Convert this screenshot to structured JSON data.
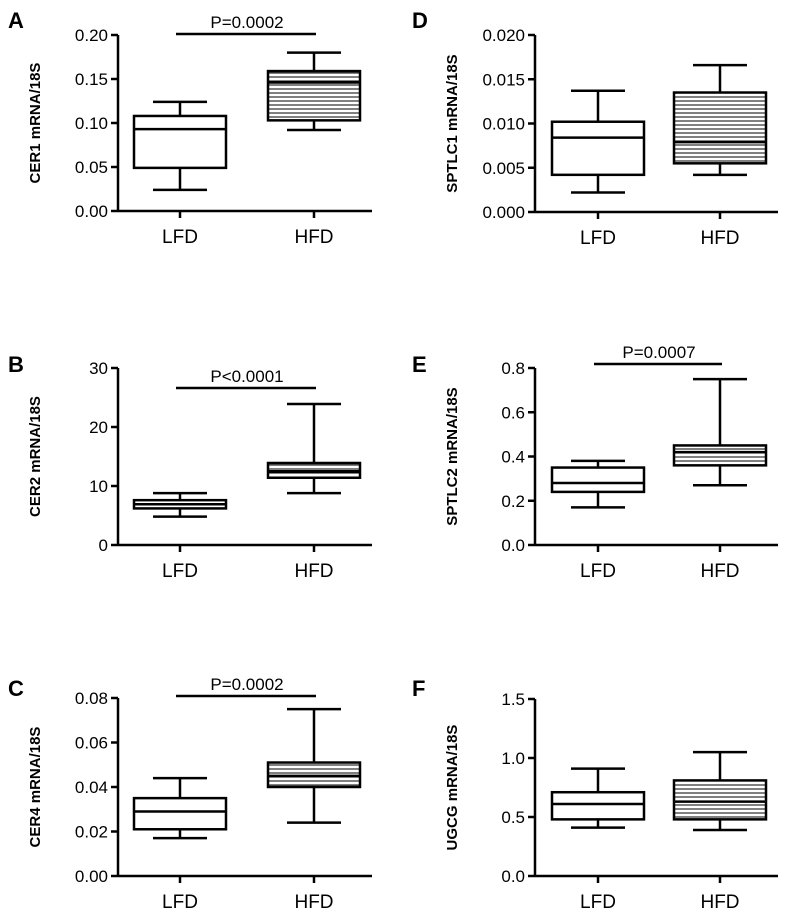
{
  "chart_data": [
    {
      "panel": "A",
      "type": "box",
      "ylabel": "CER1 mRNA/18S",
      "categories": [
        "LFD",
        "HFD"
      ],
      "ylim": [
        0,
        0.2
      ],
      "yticks": [
        "0.00",
        "0.05",
        "0.10",
        "0.15",
        "0.20"
      ],
      "tick_values": [
        0,
        0.05,
        0.1,
        0.15,
        0.2
      ],
      "pvalue": "P=0.0002",
      "boxes": [
        {
          "name": "LFD",
          "min": 0.024,
          "q1": 0.049,
          "median": 0.093,
          "q3": 0.108,
          "max": 0.124,
          "fill": "plain"
        },
        {
          "name": "HFD",
          "min": 0.092,
          "q1": 0.103,
          "median": 0.146,
          "q3": 0.159,
          "max": 0.18,
          "fill": "hatched"
        }
      ]
    },
    {
      "panel": "D",
      "type": "box",
      "ylabel": "SPTLC1 mRNA/18S",
      "categories": [
        "LFD",
        "HFD"
      ],
      "ylim": [
        0,
        0.02
      ],
      "yticks": [
        "0.000",
        "0.005",
        "0.010",
        "0.015",
        "0.020"
      ],
      "tick_values": [
        0,
        0.005,
        0.01,
        0.015,
        0.02
      ],
      "pvalue": "",
      "boxes": [
        {
          "name": "LFD",
          "min": 0.0022,
          "q1": 0.0042,
          "median": 0.0084,
          "q3": 0.0102,
          "max": 0.0137,
          "fill": "plain"
        },
        {
          "name": "HFD",
          "min": 0.0042,
          "q1": 0.0055,
          "median": 0.0079,
          "q3": 0.0135,
          "max": 0.0166,
          "fill": "hatched"
        }
      ]
    },
    {
      "panel": "B",
      "type": "box",
      "ylabel": "CER2 mRNA/18S",
      "categories": [
        "LFD",
        "HFD"
      ],
      "ylim": [
        0,
        30
      ],
      "yticks": [
        "0",
        "10",
        "20",
        "30"
      ],
      "tick_values": [
        0,
        10,
        20,
        30
      ],
      "pvalue": "P<0.0001",
      "boxes": [
        {
          "name": "LFD",
          "min": 4.8,
          "q1": 6.2,
          "median": 6.9,
          "q3": 7.6,
          "max": 8.8,
          "fill": "plain"
        },
        {
          "name": "HFD",
          "min": 8.8,
          "q1": 11.4,
          "median": 12.5,
          "q3": 13.9,
          "max": 23.9,
          "fill": "hatched"
        }
      ]
    },
    {
      "panel": "E",
      "type": "box",
      "ylabel": "SPTLC2 mRNA/18S",
      "categories": [
        "LFD",
        "HFD"
      ],
      "ylim": [
        0,
        0.8
      ],
      "yticks": [
        "0.0",
        "0.2",
        "0.4",
        "0.6",
        "0.8"
      ],
      "tick_values": [
        0,
        0.2,
        0.4,
        0.6,
        0.8
      ],
      "pvalue": "P=0.0007",
      "boxes": [
        {
          "name": "LFD",
          "min": 0.17,
          "q1": 0.24,
          "median": 0.28,
          "q3": 0.35,
          "max": 0.38,
          "fill": "plain"
        },
        {
          "name": "HFD",
          "min": 0.27,
          "q1": 0.36,
          "median": 0.42,
          "q3": 0.45,
          "max": 0.75,
          "fill": "hatched"
        }
      ]
    },
    {
      "panel": "C",
      "type": "box",
      "ylabel": "CER4 mRNA/18S",
      "categories": [
        "LFD",
        "HFD"
      ],
      "ylim": [
        0,
        0.08
      ],
      "yticks": [
        "0.00",
        "0.02",
        "0.04",
        "0.06",
        "0.08"
      ],
      "tick_values": [
        0,
        0.02,
        0.04,
        0.06,
        0.08
      ],
      "pvalue": "P=0.0002",
      "boxes": [
        {
          "name": "LFD",
          "min": 0.017,
          "q1": 0.021,
          "median": 0.029,
          "q3": 0.035,
          "max": 0.044,
          "fill": "plain"
        },
        {
          "name": "HFD",
          "min": 0.024,
          "q1": 0.04,
          "median": 0.045,
          "q3": 0.051,
          "max": 0.075,
          "fill": "hatched"
        }
      ]
    },
    {
      "panel": "F",
      "type": "box",
      "ylabel": "UGCG mRNA/18S",
      "categories": [
        "LFD",
        "HFD"
      ],
      "ylim": [
        0,
        1.5
      ],
      "yticks": [
        "0.0",
        "0.5",
        "1.0",
        "1.5"
      ],
      "tick_values": [
        0,
        0.5,
        1.0,
        1.5
      ],
      "pvalue": "",
      "boxes": [
        {
          "name": "LFD",
          "min": 0.41,
          "q1": 0.48,
          "median": 0.61,
          "q3": 0.71,
          "max": 0.91,
          "fill": "plain"
        },
        {
          "name": "HFD",
          "min": 0.39,
          "q1": 0.48,
          "median": 0.63,
          "q3": 0.81,
          "max": 1.05,
          "fill": "hatched"
        }
      ]
    }
  ],
  "style": {
    "stroke": "#000000",
    "background": "#ffffff",
    "hatch": "#000000"
  }
}
